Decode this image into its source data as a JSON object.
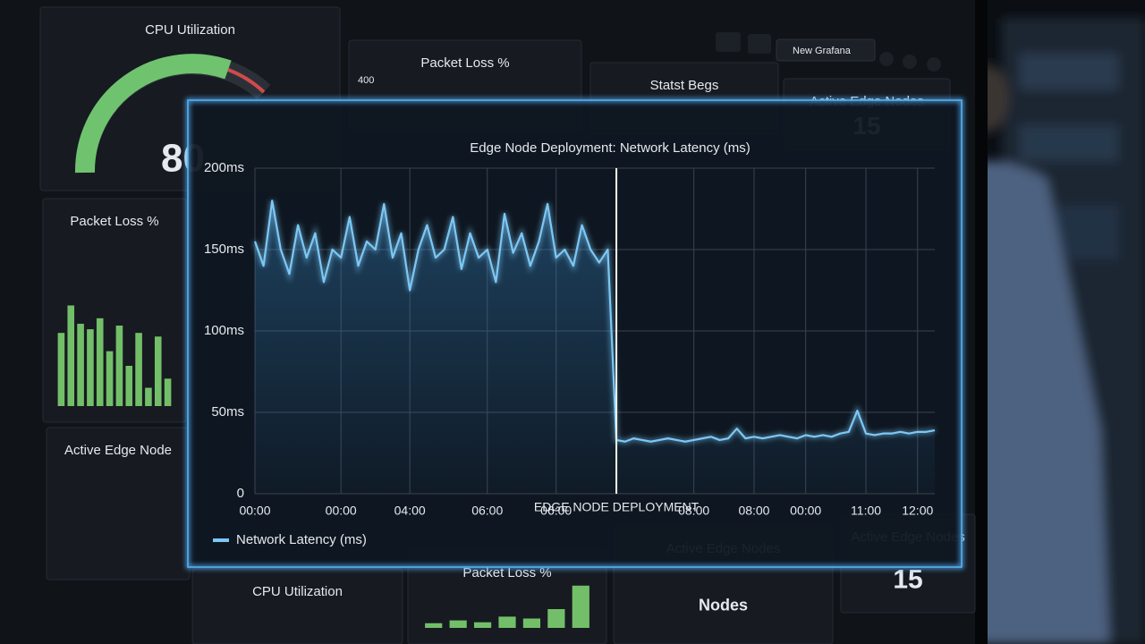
{
  "topbar": {
    "button": "New Grafana"
  },
  "panels": [
    {
      "title": "CPU Utilization",
      "value": "80"
    },
    {
      "title": "Packet Loss %",
      "label": "400"
    },
    {
      "title": "Statst Begs"
    },
    {
      "title": "Active Edge Nodes",
      "value": "15"
    },
    {
      "title": "Packet Loss %",
      "bars": [
        40,
        55,
        45,
        42,
        48,
        30,
        44,
        22,
        40,
        10,
        38,
        15
      ]
    },
    {
      "title": "Active Edge Node"
    },
    {
      "title": "CPU Utilization"
    },
    {
      "title": "Packet Loss %",
      "bars": [
        5,
        8,
        6,
        12,
        10,
        20,
        45
      ]
    },
    {
      "title": "Active Edge Nodes",
      "value": "Nodes"
    },
    {
      "title": "Active Edge Nodes",
      "value": "15"
    }
  ],
  "chart_data": {
    "type": "line",
    "title": "Edge Node Deployment: Network Latency (ms)",
    "series": [
      {
        "name": "Network Latency (ms)",
        "color": "#7cc8f5",
        "values": [
          155,
          140,
          180,
          150,
          135,
          165,
          145,
          160,
          130,
          150,
          145,
          170,
          140,
          155,
          150,
          178,
          145,
          160,
          125,
          150,
          165,
          145,
          150,
          170,
          138,
          160,
          145,
          150,
          130,
          172,
          148,
          160,
          140,
          155,
          178,
          145,
          150,
          140,
          165,
          150,
          142,
          150,
          33,
          32,
          34,
          33,
          32,
          33,
          34,
          33,
          32,
          33,
          34,
          35,
          33,
          34,
          40,
          34,
          35,
          34,
          35,
          36,
          35,
          34,
          36,
          35,
          36,
          35,
          37,
          38,
          51,
          37,
          36,
          37,
          37,
          38,
          37,
          38,
          38,
          39
        ]
      }
    ],
    "xlim": [
      0,
      79
    ],
    "xticks": [
      {
        "value": 0,
        "label": "00:00"
      },
      {
        "value": 10,
        "label": "00:00"
      },
      {
        "value": 18,
        "label": "04:00"
      },
      {
        "value": 27,
        "label": "06:00"
      },
      {
        "value": 35,
        "label": "06:00"
      },
      {
        "value": 51,
        "label": "08:00"
      },
      {
        "value": 58,
        "label": "08:00"
      },
      {
        "value": 64,
        "label": "00:00"
      },
      {
        "value": 71,
        "label": "11:00"
      },
      {
        "value": 77,
        "label": "12:00"
      }
    ],
    "ylim": [
      0,
      200
    ],
    "yticks": [
      0,
      {
        "value": 50,
        "label": "50ms"
      },
      {
        "value": 100,
        "label": "100ms"
      },
      {
        "value": 150,
        "label": "150ms"
      },
      {
        "value": 200,
        "label": "200ms"
      }
    ],
    "grid": true,
    "annotation": {
      "x": 42,
      "text": "EDGE NODE DEPLOYMENT"
    }
  }
}
